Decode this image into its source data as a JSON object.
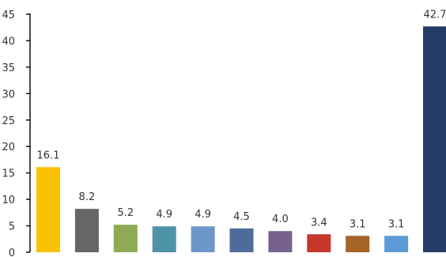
{
  "chart_data": {
    "type": "bar",
    "title": "",
    "xlabel": "",
    "ylabel": "",
    "ylim": [
      0,
      45
    ],
    "yticks": [
      0,
      5,
      10,
      15,
      20,
      25,
      30,
      35,
      40,
      45
    ],
    "grid": false,
    "legend": "none",
    "categories": [
      "",
      "",
      "",
      "",
      "",
      "",
      "",
      "",
      "",
      "",
      ""
    ],
    "values": [
      16.1,
      8.2,
      5.2,
      4.9,
      4.9,
      4.5,
      4.0,
      3.4,
      3.1,
      3.1,
      42.7
    ],
    "labels": [
      "16.1",
      "8.2",
      "5.2",
      "4.9",
      "4.9",
      "4.5",
      "4.0",
      "3.4",
      "3.1",
      "3.1",
      "42.7"
    ],
    "colors": [
      "#F9C200",
      "#666666",
      "#8FAA55",
      "#4F93A8",
      "#6E97C9",
      "#4E6C99",
      "#77628E",
      "#C4372A",
      "#A56527",
      "#5B9BD8",
      "#243C66"
    ]
  }
}
